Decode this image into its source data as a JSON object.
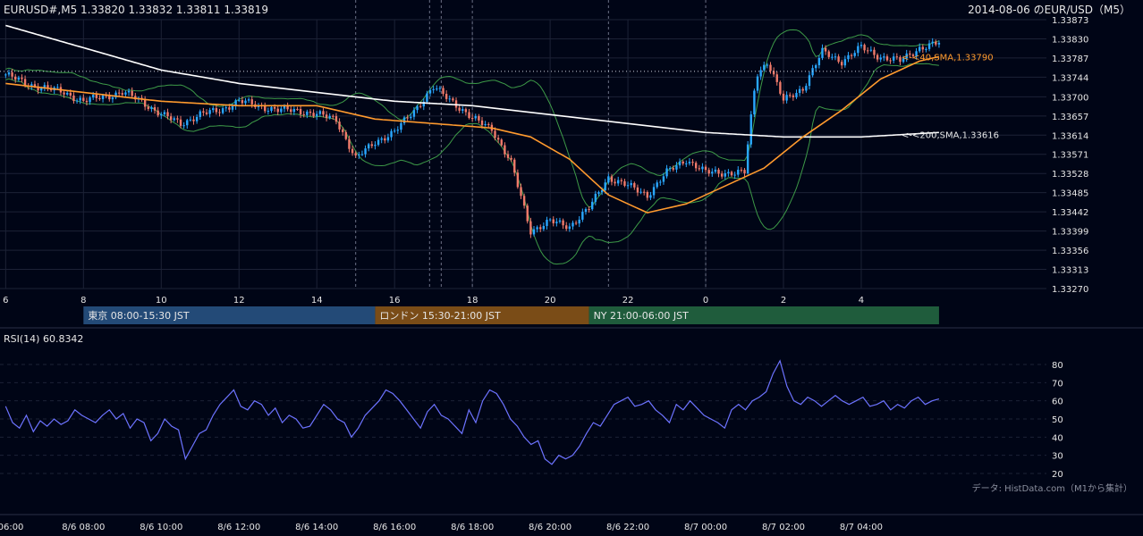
{
  "header": {
    "symbol_line": "EURUSD#,M5  1.33820  1.33832  1.33811  1.33819",
    "chart_title": "2014-08-06 のEUR/USD（M5）"
  },
  "colors": {
    "background": "#000516",
    "grid": "#1c2236",
    "up_candle": "#29a7ff",
    "down_candle": "#f07a6a",
    "sma40": "#ff9a2e",
    "sma200": "#ffffff",
    "bollinger": "#3d9a48",
    "rsi": "#6c73ff",
    "tokyo": "#234a77",
    "london": "#7a4c17",
    "ny": "#1f5c3c"
  },
  "chart_data": [
    {
      "type": "candlestick",
      "y_ticks": [
        "1.33873",
        "1.33830",
        "1.33787",
        "1.33744",
        "1.33700",
        "1.33657",
        "1.33614",
        "1.33571",
        "1.33528",
        "1.33485",
        "1.33442",
        "1.33399",
        "1.33356",
        "1.33313",
        "1.33270"
      ],
      "ylim": [
        1.3327,
        1.33873
      ],
      "x_ticks": [
        "6",
        "8",
        "10",
        "12",
        "14",
        "16",
        "18",
        "20",
        "22",
        "0",
        "2",
        "4"
      ],
      "indicators": [
        {
          "name": "<-<40,SMA,1.33790",
          "value": 1.3379
        },
        {
          "name": "<-<200,SMA,1.33616",
          "value": 1.33616
        }
      ],
      "current_price": 1.33819,
      "close_series": [
        {
          "t": 6.0,
          "close": 1.3375
        },
        {
          "t": 6.5,
          "close": 1.3373
        },
        {
          "t": 7.0,
          "close": 1.3372
        },
        {
          "t": 7.5,
          "close": 1.3371
        },
        {
          "t": 8.0,
          "close": 1.3369
        },
        {
          "t": 8.5,
          "close": 1.337
        },
        {
          "t": 9.0,
          "close": 1.3371
        },
        {
          "t": 9.5,
          "close": 1.3369
        },
        {
          "t": 10.0,
          "close": 1.3366
        },
        {
          "t": 10.5,
          "close": 1.3364
        },
        {
          "t": 11.0,
          "close": 1.3366
        },
        {
          "t": 11.5,
          "close": 1.3367
        },
        {
          "t": 12.0,
          "close": 1.3369
        },
        {
          "t": 12.5,
          "close": 1.3368
        },
        {
          "t": 13.0,
          "close": 1.3367
        },
        {
          "t": 13.5,
          "close": 1.3367
        },
        {
          "t": 14.0,
          "close": 1.3366
        },
        {
          "t": 14.5,
          "close": 1.3365
        },
        {
          "t": 15.0,
          "close": 1.3356
        },
        {
          "t": 15.5,
          "close": 1.336
        },
        {
          "t": 16.0,
          "close": 1.3362
        },
        {
          "t": 16.5,
          "close": 1.3367
        },
        {
          "t": 17.0,
          "close": 1.3372
        },
        {
          "t": 17.5,
          "close": 1.3369
        },
        {
          "t": 18.0,
          "close": 1.3365
        },
        {
          "t": 18.5,
          "close": 1.3363
        },
        {
          "t": 19.0,
          "close": 1.3355
        },
        {
          "t": 19.5,
          "close": 1.334
        },
        {
          "t": 20.0,
          "close": 1.3342
        },
        {
          "t": 20.5,
          "close": 1.3341
        },
        {
          "t": 21.0,
          "close": 1.3345
        },
        {
          "t": 21.5,
          "close": 1.3352
        },
        {
          "t": 22.0,
          "close": 1.335
        },
        {
          "t": 22.5,
          "close": 1.3348
        },
        {
          "t": 23.0,
          "close": 1.3353
        },
        {
          "t": 23.5,
          "close": 1.3356
        },
        {
          "t": 24.0,
          "close": 1.3353
        },
        {
          "t": 24.5,
          "close": 1.3353
        },
        {
          "t": 25.0,
          "close": 1.3353
        },
        {
          "t": 25.3,
          "close": 1.3375
        },
        {
          "t": 25.6,
          "close": 1.3378
        },
        {
          "t": 26.0,
          "close": 1.3369
        },
        {
          "t": 26.5,
          "close": 1.3372
        },
        {
          "t": 27.0,
          "close": 1.338
        },
        {
          "t": 27.5,
          "close": 1.3378
        },
        {
          "t": 28.0,
          "close": 1.3381
        },
        {
          "t": 28.5,
          "close": 1.3379
        },
        {
          "t": 29.0,
          "close": 1.3378
        },
        {
          "t": 29.5,
          "close": 1.3381
        },
        {
          "t": 30.0,
          "close": 1.3382
        }
      ],
      "sma40_series": [
        {
          "t": 6.0,
          "value": 1.3373
        },
        {
          "t": 8.0,
          "value": 1.3371
        },
        {
          "t": 10.0,
          "value": 1.3369
        },
        {
          "t": 12.0,
          "value": 1.3368
        },
        {
          "t": 14.0,
          "value": 1.3368
        },
        {
          "t": 15.5,
          "value": 1.3365
        },
        {
          "t": 17.0,
          "value": 1.3364
        },
        {
          "t": 18.5,
          "value": 1.3363
        },
        {
          "t": 19.5,
          "value": 1.3361
        },
        {
          "t": 20.5,
          "value": 1.3356
        },
        {
          "t": 21.5,
          "value": 1.3348
        },
        {
          "t": 22.5,
          "value": 1.3344
        },
        {
          "t": 23.5,
          "value": 1.3346
        },
        {
          "t": 24.5,
          "value": 1.335
        },
        {
          "t": 25.5,
          "value": 1.3354
        },
        {
          "t": 26.5,
          "value": 1.3361
        },
        {
          "t": 27.5,
          "value": 1.3367
        },
        {
          "t": 28.5,
          "value": 1.3374
        },
        {
          "t": 29.5,
          "value": 1.3378
        },
        {
          "t": 30.0,
          "value": 1.3379
        }
      ],
      "sma200_series": [
        {
          "t": 6.0,
          "value": 1.3386
        },
        {
          "t": 8.0,
          "value": 1.3381
        },
        {
          "t": 10.0,
          "value": 1.3376
        },
        {
          "t": 12.0,
          "value": 1.3373
        },
        {
          "t": 14.0,
          "value": 1.3371
        },
        {
          "t": 16.0,
          "value": 1.3369
        },
        {
          "t": 18.0,
          "value": 1.3368
        },
        {
          "t": 20.0,
          "value": 1.3366
        },
        {
          "t": 22.0,
          "value": 1.3364
        },
        {
          "t": 24.0,
          "value": 1.3362
        },
        {
          "t": 26.0,
          "value": 1.3361
        },
        {
          "t": 28.0,
          "value": 1.3361
        },
        {
          "t": 30.0,
          "value": 1.3362
        }
      ],
      "sessions": [
        {
          "label": "東京 08:00-15:30 JST",
          "start": 8.0,
          "end": 15.5
        },
        {
          "label": "ロンドン 15:30-21:00 JST",
          "start": 15.5,
          "end": 21.0
        },
        {
          "label": "NY 21:00-06:00 JST",
          "start": 21.0,
          "end": 30.0
        }
      ]
    },
    {
      "type": "line",
      "title": "RSI(14) 60.8342",
      "y_ticks": [
        "80",
        "70",
        "60",
        "50",
        "40",
        "30",
        "20"
      ],
      "ylim": [
        20,
        80
      ],
      "x_ticks": [
        "06:00",
        "8/6 08:00",
        "8/6 10:00",
        "8/6 12:00",
        "8/6 14:00",
        "8/6 16:00",
        "8/6 18:00",
        "8/6 20:00",
        "8/6 22:00",
        "8/7 00:00",
        "8/7 02:00",
        "8/7 04:00"
      ],
      "series": [
        {
          "values": [
            57,
            48,
            45,
            52,
            43,
            49,
            46,
            50,
            47,
            49,
            55,
            52,
            50,
            48,
            52,
            55,
            50,
            53,
            45,
            50,
            48,
            38,
            42,
            50,
            46,
            44,
            28,
            35,
            42,
            44,
            52,
            58,
            62,
            66,
            57,
            55,
            60,
            58,
            52,
            56,
            48,
            52,
            50,
            45,
            46,
            52,
            58,
            55,
            50,
            48,
            40,
            45,
            52,
            56,
            60,
            66,
            64,
            60,
            55,
            50,
            45,
            54,
            58,
            52,
            50,
            46,
            42,
            55,
            48,
            60,
            66,
            64,
            58,
            50,
            46,
            40,
            36,
            38,
            28,
            25,
            30,
            28,
            30,
            35,
            42,
            48,
            46,
            52,
            58,
            60,
            62,
            57,
            58,
            60,
            55,
            52,
            48,
            58,
            55,
            60,
            56,
            52,
            50,
            48,
            45,
            55,
            58,
            55,
            60,
            62,
            65,
            75,
            82,
            68,
            60,
            58,
            62,
            60,
            57,
            60,
            63,
            60,
            58,
            60,
            62,
            57,
            58,
            60,
            55,
            58,
            56,
            60,
            62,
            58,
            60,
            61
          ]
        }
      ]
    }
  ],
  "footer": {
    "credit": "データ: HistData.com（M1から集計）"
  }
}
